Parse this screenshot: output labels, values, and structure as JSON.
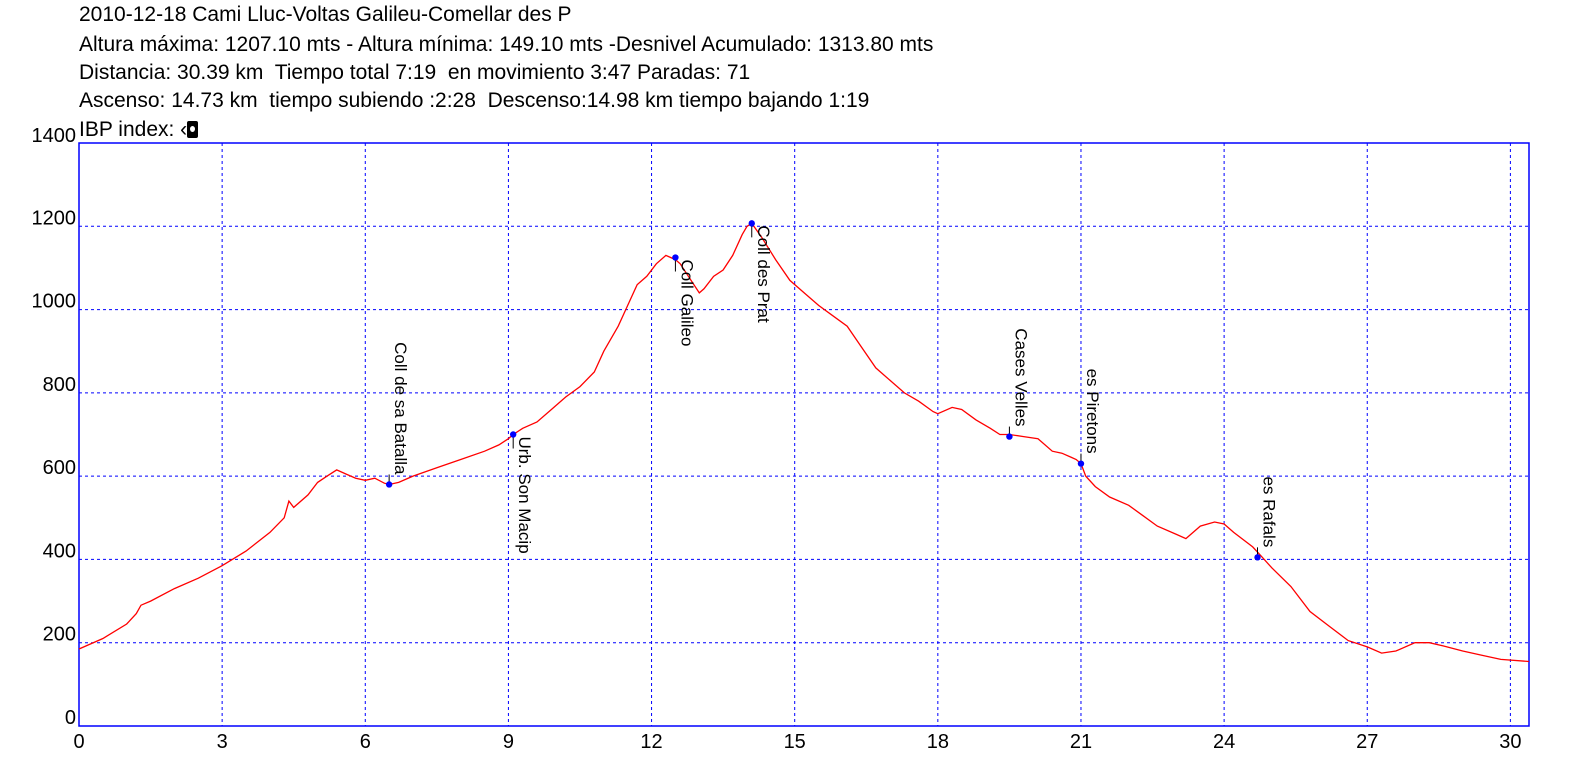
{
  "header": {
    "title": "2010-12-18 Cami Lluc-Voltas Galileu-Comellar des P",
    "line2": "Altura máxima: 1207.10 mts - Altura mínima: 149.10 mts -Desnivel Acumulado: 1313.80 mts",
    "line3": "Distancia: 30.39 km  Tiempo total 7:19  en movimiento 3:47 Paradas: 71",
    "line4": "Ascenso: 14.73 km  tiempo subiendo :2:28  Descenso:14.98 km tiempo bajando 1:19",
    "line5": "IBP index: ‹"
  },
  "colors": {
    "profile": "#ff0000",
    "grid": "#0000ff",
    "frame": "#0000ff",
    "waypoint": "#0000ff"
  },
  "chart_data": {
    "type": "line",
    "xlim": [
      0,
      30.39
    ],
    "ylim": [
      0,
      1400
    ],
    "x_ticks": [
      0,
      3,
      6,
      9,
      12,
      15,
      18,
      21,
      24,
      27,
      30
    ],
    "y_ticks": [
      0,
      200,
      400,
      600,
      800,
      1000,
      1200,
      1400
    ],
    "grid": true,
    "series": [
      {
        "values": [
          [
            0,
            185
          ],
          [
            0.5,
            210
          ],
          [
            1.0,
            245
          ],
          [
            1.2,
            270
          ],
          [
            1.3,
            290
          ],
          [
            1.5,
            300
          ],
          [
            2.0,
            330
          ],
          [
            2.5,
            355
          ],
          [
            3.0,
            385
          ],
          [
            3.5,
            420
          ],
          [
            4.0,
            465
          ],
          [
            4.3,
            500
          ],
          [
            4.4,
            540
          ],
          [
            4.5,
            525
          ],
          [
            4.8,
            555
          ],
          [
            5.0,
            585
          ],
          [
            5.2,
            600
          ],
          [
            5.4,
            615
          ],
          [
            5.6,
            605
          ],
          [
            5.8,
            595
          ],
          [
            6.0,
            590
          ],
          [
            6.2,
            595
          ],
          [
            6.4,
            583
          ],
          [
            6.5,
            580
          ],
          [
            6.7,
            585
          ],
          [
            7.0,
            600
          ],
          [
            7.5,
            620
          ],
          [
            8.0,
            640
          ],
          [
            8.5,
            660
          ],
          [
            8.8,
            675
          ],
          [
            9.0,
            690
          ],
          [
            9.1,
            700
          ],
          [
            9.3,
            715
          ],
          [
            9.6,
            730
          ],
          [
            9.9,
            760
          ],
          [
            10.2,
            790
          ],
          [
            10.5,
            815
          ],
          [
            10.8,
            850
          ],
          [
            11.0,
            900
          ],
          [
            11.3,
            960
          ],
          [
            11.5,
            1010
          ],
          [
            11.7,
            1060
          ],
          [
            11.9,
            1080
          ],
          [
            12.1,
            1110
          ],
          [
            12.3,
            1130
          ],
          [
            12.5,
            1120
          ],
          [
            12.6,
            1110
          ],
          [
            12.8,
            1075
          ],
          [
            13.0,
            1040
          ],
          [
            13.1,
            1050
          ],
          [
            13.3,
            1080
          ],
          [
            13.5,
            1095
          ],
          [
            13.7,
            1130
          ],
          [
            13.9,
            1180
          ],
          [
            14.0,
            1200
          ],
          [
            14.1,
            1207
          ],
          [
            14.3,
            1175
          ],
          [
            14.6,
            1120
          ],
          [
            14.9,
            1070
          ],
          [
            15.2,
            1040
          ],
          [
            15.5,
            1010
          ],
          [
            15.8,
            985
          ],
          [
            16.1,
            960
          ],
          [
            16.4,
            910
          ],
          [
            16.7,
            860
          ],
          [
            17.0,
            830
          ],
          [
            17.3,
            800
          ],
          [
            17.6,
            780
          ],
          [
            17.9,
            755
          ],
          [
            18.0,
            750
          ],
          [
            18.3,
            765
          ],
          [
            18.5,
            760
          ],
          [
            18.8,
            735
          ],
          [
            19.1,
            715
          ],
          [
            19.3,
            700
          ],
          [
            19.5,
            700
          ],
          [
            19.8,
            695
          ],
          [
            20.1,
            690
          ],
          [
            20.4,
            660
          ],
          [
            20.6,
            655
          ],
          [
            20.8,
            645
          ],
          [
            20.9,
            640
          ],
          [
            21.0,
            630
          ],
          [
            21.1,
            600
          ],
          [
            21.3,
            575
          ],
          [
            21.6,
            550
          ],
          [
            22.0,
            530
          ],
          [
            22.3,
            505
          ],
          [
            22.6,
            480
          ],
          [
            23.0,
            460
          ],
          [
            23.2,
            450
          ],
          [
            23.5,
            480
          ],
          [
            23.8,
            490
          ],
          [
            24.0,
            485
          ],
          [
            24.2,
            465
          ],
          [
            24.6,
            430
          ],
          [
            24.8,
            405
          ],
          [
            25.0,
            380
          ],
          [
            25.4,
            335
          ],
          [
            25.8,
            275
          ],
          [
            26.2,
            240
          ],
          [
            26.6,
            205
          ],
          [
            27.0,
            190
          ],
          [
            27.3,
            175
          ],
          [
            27.6,
            180
          ],
          [
            28.0,
            200
          ],
          [
            28.3,
            200
          ],
          [
            28.6,
            192
          ],
          [
            29.0,
            180
          ],
          [
            29.4,
            170
          ],
          [
            29.8,
            160
          ],
          [
            30.39,
            155
          ]
        ]
      }
    ],
    "waypoints": [
      {
        "name": "Coll de sa Batalla",
        "x": 6.5,
        "y": 580
      },
      {
        "name": "Urb. Son Macip",
        "x": 9.1,
        "y": 700
      },
      {
        "name": "Coll Galileo",
        "x": 12.5,
        "y": 1125
      },
      {
        "name": "Coll des Prat",
        "x": 14.1,
        "y": 1207
      },
      {
        "name": "Cases Velles",
        "x": 19.5,
        "y": 695
      },
      {
        "name": "es Piretons",
        "x": 21.0,
        "y": 630
      },
      {
        "name": "es Rafals",
        "x": 24.7,
        "y": 405
      }
    ]
  }
}
